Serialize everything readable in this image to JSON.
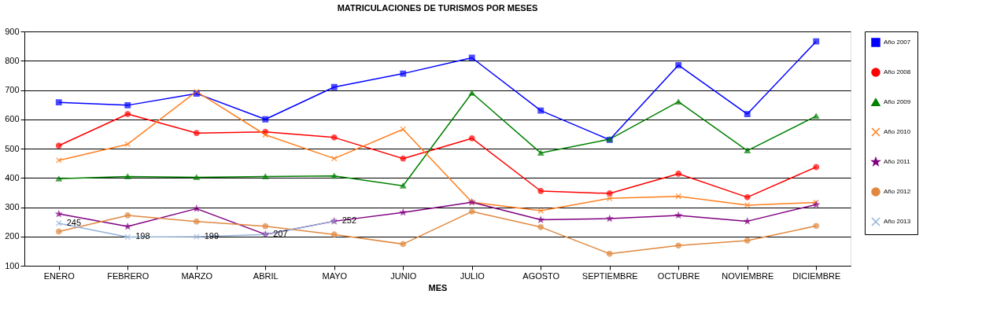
{
  "chart_data": {
    "type": "line",
    "title": "MATRICULACIONES DE TURISMOS POR MESES",
    "xlabel": "MES",
    "categories": [
      "ENERO",
      "FEBRERO",
      "MARZO",
      "ABRIL",
      "MAYO",
      "JUNIO",
      "JULIO",
      "AGOSTO",
      "SEPTIEMBRE",
      "OCTUBRE",
      "NOVIEMBRE",
      "DICIEMBRE"
    ],
    "ylim": [
      100,
      900
    ],
    "yticks": [
      100,
      200,
      300,
      400,
      500,
      600,
      700,
      800,
      900
    ],
    "grid": "y",
    "legend": "right",
    "series": [
      {
        "name": "Año 2007",
        "color": "#0000ff",
        "marker": "square",
        "values": [
          658,
          648,
          688,
          600,
          710,
          756,
          810,
          630,
          530,
          785,
          618,
          866
        ]
      },
      {
        "name": "Año 2008",
        "color": "#ff0000",
        "marker": "circle",
        "values": [
          510,
          618,
          553,
          557,
          538,
          466,
          535,
          355,
          347,
          414,
          334,
          437
        ]
      },
      {
        "name": "Año 2009",
        "color": "#008000",
        "marker": "triangle",
        "values": [
          397,
          405,
          402,
          405,
          407,
          373,
          690,
          485,
          532,
          660,
          493,
          611
        ]
      },
      {
        "name": "Año 2010",
        "color": "#ff7f1f",
        "marker": "cross",
        "values": [
          460,
          515,
          695,
          547,
          466,
          566,
          317,
          288,
          330,
          337,
          307,
          316
        ]
      },
      {
        "name": "Año 2011",
        "color": "#800080",
        "marker": "star",
        "values": [
          277,
          234,
          295,
          207,
          252,
          282,
          317,
          257,
          261,
          272,
          252,
          309
        ]
      },
      {
        "name": "Año 2012",
        "color": "#e0883f",
        "marker": "circle",
        "values": [
          217,
          272,
          251,
          235,
          207,
          174,
          285,
          232,
          141,
          169,
          186,
          236
        ]
      },
      {
        "name": "Año 2013",
        "color": "#95b3d7",
        "marker": "cross",
        "values": [
          245,
          198,
          199,
          207,
          252,
          null,
          null,
          null,
          null,
          null,
          null,
          null
        ],
        "value_labels": [
          "245",
          "198",
          "199",
          "207",
          "252",
          null,
          null,
          null,
          null,
          null,
          null,
          null
        ]
      }
    ]
  }
}
